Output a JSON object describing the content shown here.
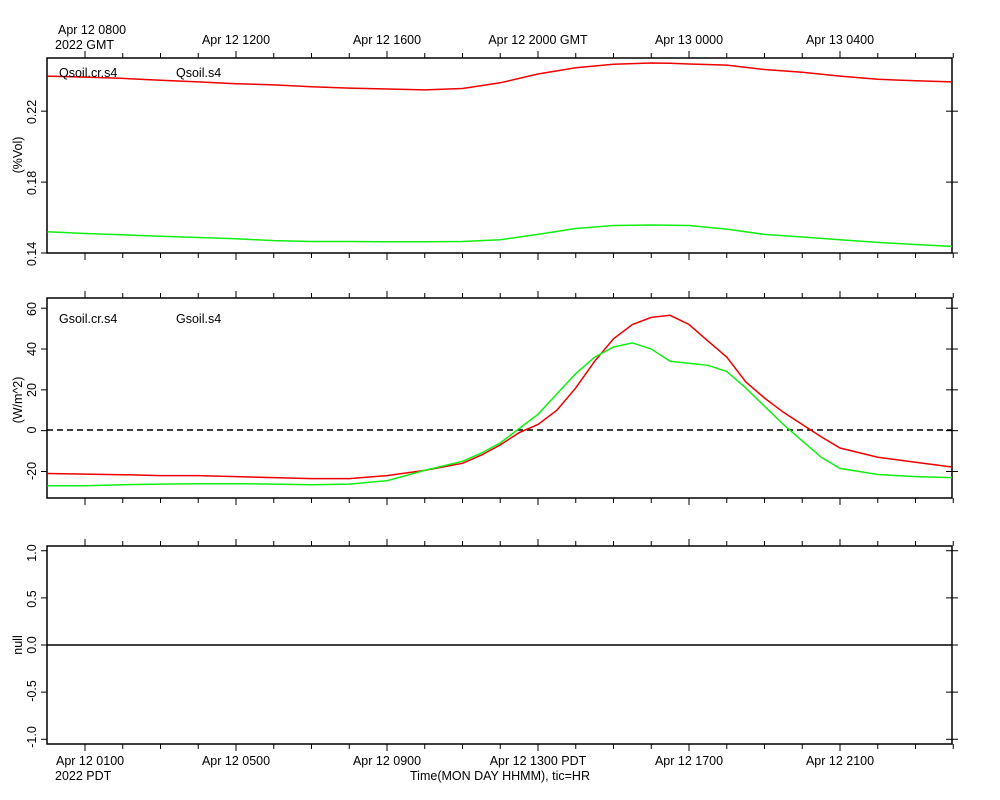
{
  "colors": {
    "red": "#ee0000",
    "green": "#11ee11",
    "axis": "#000000"
  },
  "time_axis": {
    "top_first_label_line1": "Apr 12 0800",
    "top_first_label_line2": "2022 GMT",
    "top_labels": [
      "Apr 12 1200",
      "Apr 12 1600",
      "Apr 12 2000 GMT",
      "Apr 13 0000",
      "Apr 13 0400"
    ],
    "bottom_first_label_line1": "Apr 12 0100",
    "bottom_first_label_line2": "2022 PDT",
    "bottom_labels": [
      "Apr 12 0500",
      "Apr 12 0900",
      "Apr 12 1300 PDT",
      "Apr 12 1700",
      "Apr 12 2100"
    ],
    "xlabel": "Time(MON DAY HHMM), tic=HR"
  },
  "chart_data": [
    {
      "type": "line",
      "ylabel": "(%Vol)",
      "ylim": [
        0.14,
        0.25
      ],
      "yticks": [
        0.14,
        0.18,
        0.22
      ],
      "ytick_labels": [
        "0.14",
        "0.18",
        "0.22"
      ],
      "x_units": "hours since Apr 12 0100 PDT",
      "xlim": [
        -1,
        23
      ],
      "series": [
        {
          "name": "Qsoil.cr.s4",
          "color": "red",
          "x": [
            -1,
            0,
            1,
            2,
            3,
            4,
            5,
            6,
            7,
            8,
            9,
            10,
            11,
            12,
            13,
            14,
            15,
            15.5,
            16,
            17,
            18,
            19,
            20,
            21,
            22,
            23
          ],
          "y": [
            0.2398,
            0.2392,
            0.2385,
            0.2375,
            0.2365,
            0.2355,
            0.2348,
            0.2338,
            0.233,
            0.2325,
            0.232,
            0.2328,
            0.236,
            0.241,
            0.2445,
            0.2465,
            0.2472,
            0.247,
            0.2466,
            0.246,
            0.2435,
            0.242,
            0.2398,
            0.238,
            0.2372,
            0.2365
          ]
        },
        {
          "name": "Qsoil.s4",
          "color": "green",
          "x": [
            -1,
            0,
            2,
            4,
            5,
            6,
            7,
            8,
            9,
            10,
            11,
            12,
            13,
            14,
            15,
            16,
            17,
            18,
            19,
            20,
            21,
            22,
            23
          ],
          "y": [
            0.152,
            0.151,
            0.1495,
            0.148,
            0.147,
            0.1465,
            0.1465,
            0.1463,
            0.1463,
            0.1465,
            0.1475,
            0.1505,
            0.1538,
            0.1555,
            0.1558,
            0.1555,
            0.1535,
            0.1505,
            0.149,
            0.1475,
            0.146,
            0.1448,
            0.1437
          ]
        }
      ]
    },
    {
      "type": "line",
      "ylabel": "(W/m^2)",
      "ylim": [
        -33,
        65
      ],
      "yticks": [
        -20,
        0,
        20,
        40,
        60
      ],
      "ytick_labels": [
        "-20",
        "0",
        "20",
        "40",
        "60"
      ],
      "zero_line": true,
      "x_units": "hours since Apr 12 0100 PDT",
      "xlim": [
        -1,
        23
      ],
      "series": [
        {
          "name": "Gsoil.cr.s4",
          "color": "red",
          "x": [
            -1,
            0,
            1,
            2,
            3,
            4,
            5,
            6,
            7,
            8,
            9,
            10,
            10.5,
            11,
            11.5,
            12,
            12.5,
            13,
            13.5,
            14,
            14.5,
            15,
            15.5,
            16,
            16.5,
            17,
            17.5,
            18,
            18.5,
            19,
            19.5,
            20,
            21,
            22,
            23
          ],
          "y": [
            -21,
            -21.3,
            -21.6,
            -22,
            -22,
            -22.5,
            -23,
            -23.5,
            -23.5,
            -22,
            -19.5,
            -16,
            -12,
            -7,
            -1,
            3,
            10,
            21,
            34,
            45,
            52,
            55.5,
            56.5,
            52,
            44,
            36,
            24,
            16,
            9,
            3,
            -3,
            -8.5,
            -13,
            -15.5,
            -17.8
          ]
        },
        {
          "name": "Gsoil.s4",
          "color": "green",
          "x": [
            -1,
            0,
            1,
            2,
            3,
            4,
            5,
            6,
            7,
            8,
            9,
            10,
            10.5,
            11,
            11.5,
            12,
            12.5,
            13,
            13.5,
            14,
            14.5,
            15,
            15.5,
            16,
            16.5,
            17,
            17.5,
            18,
            18.5,
            19,
            19.5,
            20,
            21,
            22,
            23
          ],
          "y": [
            -27,
            -27,
            -26.5,
            -26.2,
            -26,
            -26,
            -26.2,
            -26.5,
            -26.2,
            -24.5,
            -19.5,
            -15,
            -11,
            -6,
            1,
            8,
            18,
            28,
            36,
            41,
            43,
            40,
            34,
            33,
            32,
            29,
            21,
            12,
            3,
            -5,
            -13,
            -18.5,
            -21.5,
            -22.5,
            -23
          ]
        }
      ]
    },
    {
      "type": "line",
      "ylabel": "null",
      "ylim": [
        -1.05,
        1.05
      ],
      "yticks": [
        -1.0,
        -0.5,
        0.0,
        0.5,
        1.0
      ],
      "ytick_labels": [
        "-1.0",
        "-0.5",
        "0.0",
        "0.5",
        "1.0"
      ],
      "series": [],
      "reference_line_y": 0.0
    }
  ]
}
